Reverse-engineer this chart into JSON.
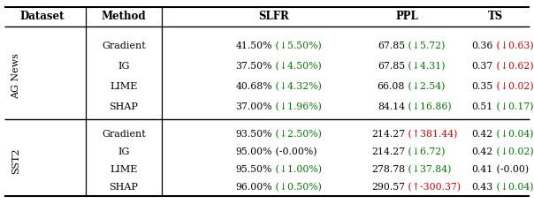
{
  "headers": [
    "Dataset",
    "Method",
    "SLFR",
    "PPL",
    "TS"
  ],
  "ag_news_rows": [
    {
      "method": "Gradient",
      "slfr_main": "41.50%",
      "slfr_delta": "(↓5.50%)",
      "slfr_delta_color": "green",
      "ppl_main": "67.85",
      "ppl_delta": "(↓5.72)",
      "ppl_delta_color": "green",
      "ts_main": "0.36",
      "ts_delta": "(↓0.63)",
      "ts_delta_color": "red"
    },
    {
      "method": "IG",
      "slfr_main": "37.50%",
      "slfr_delta": "(↓4.50%)",
      "slfr_delta_color": "green",
      "ppl_main": "67.85",
      "ppl_delta": "(↓4.31)",
      "ppl_delta_color": "green",
      "ts_main": "0.37",
      "ts_delta": "(↓0.62)",
      "ts_delta_color": "red"
    },
    {
      "method": "LIME",
      "slfr_main": "40.68%",
      "slfr_delta": "(↓4.32%)",
      "slfr_delta_color": "green",
      "ppl_main": "66.08",
      "ppl_delta": "(↓2.54)",
      "ppl_delta_color": "green",
      "ts_main": "0.35",
      "ts_delta": "(↓0.02)",
      "ts_delta_color": "red"
    },
    {
      "method": "SHAP",
      "slfr_main": "37.00%",
      "slfr_delta": "(↓1.96%)",
      "slfr_delta_color": "green",
      "ppl_main": "84.14",
      "ppl_delta": "(↓16.86)",
      "ppl_delta_color": "green",
      "ts_main": "0.51",
      "ts_delta": "(↓0.17)",
      "ts_delta_color": "green"
    }
  ],
  "sst2_rows": [
    {
      "method": "Gradient",
      "slfr_main": "93.50%",
      "slfr_delta": "(↓2.50%)",
      "slfr_delta_color": "green",
      "ppl_main": "214.27",
      "ppl_delta": "(↑381.44)",
      "ppl_delta_color": "red",
      "ts_main": "0.42",
      "ts_delta": "(↓0.04)",
      "ts_delta_color": "green"
    },
    {
      "method": "IG",
      "slfr_main": "95.00%",
      "slfr_delta": "(-0.00%)",
      "slfr_delta_color": "black",
      "ppl_main": "214.27",
      "ppl_delta": "(↓6.72)",
      "ppl_delta_color": "green",
      "ts_main": "0.42",
      "ts_delta": "(↓0.02)",
      "ts_delta_color": "green"
    },
    {
      "method": "LIME",
      "slfr_main": "95.50%",
      "slfr_delta": "(↓1.00%)",
      "slfr_delta_color": "green",
      "ppl_main": "278.78",
      "ppl_delta": "(↓37.84)",
      "ppl_delta_color": "green",
      "ts_main": "0.41",
      "ts_delta": "(-0.00)",
      "ts_delta_color": "black"
    },
    {
      "method": "SHAP",
      "slfr_main": "96.00%",
      "slfr_delta": "(↓0.50%)",
      "slfr_delta_color": "green",
      "ppl_main": "290.57",
      "ppl_delta": "(↑-300.37)",
      "ppl_delta_color": "red",
      "ts_main": "0.43",
      "ts_delta": "(↓0.04)",
      "ts_delta_color": "green"
    }
  ],
  "bg_color": "#ffffff",
  "text_color": "#000000",
  "green_color": "#007700",
  "red_color": "#cc0000",
  "figsize": [
    6.04,
    2.48
  ],
  "dpi": 100
}
